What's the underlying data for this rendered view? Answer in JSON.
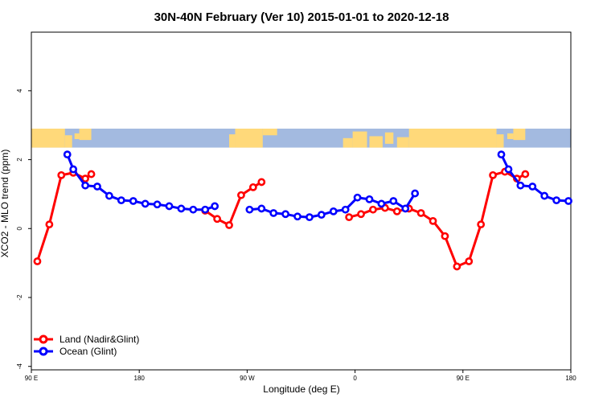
{
  "chart_data": {
    "type": "line",
    "title": "30N-40N February (Ver 10)   2015-01-01 to 2020-12-18",
    "xlabel": "Longitude (deg E)",
    "ylabel": "XCO2 - MLO trend (ppm)",
    "xlim": [
      90,
      540
    ],
    "ylim": [
      -4.1,
      5.7
    ],
    "x_ticks": [
      {
        "value": 90,
        "label": "90 E"
      },
      {
        "value": 180,
        "label": "180"
      },
      {
        "value": 270,
        "label": "90 W"
      },
      {
        "value": 360,
        "label": "0"
      },
      {
        "value": 450,
        "label": "90 E"
      },
      {
        "value": 540,
        "label": "180"
      }
    ],
    "y_ticks": [
      {
        "value": -4,
        "label": "-4"
      },
      {
        "value": -2,
        "label": "-2"
      },
      {
        "value": 0,
        "label": "0"
      },
      {
        "value": 2,
        "label": "2"
      },
      {
        "value": 4,
        "label": "4"
      }
    ],
    "map_strip": {
      "lat_range": [
        30,
        40
      ],
      "y_range": [
        2.35,
        2.9
      ],
      "land_color": "#FFD97A",
      "ocean_color": "#A3BAE0"
    },
    "legend": {
      "position": "bottom-left"
    },
    "series": [
      {
        "name": "Land (Nadir&Glint)",
        "color": "#FF0000",
        "segments": [
          [
            [
              95,
              -0.95
            ],
            [
              105,
              0.12
            ],
            [
              115,
              1.55
            ],
            [
              125,
              1.62
            ],
            [
              135,
              1.45
            ],
            [
              140,
              1.58
            ]
          ],
          [
            [
              235,
              0.52
            ],
            [
              245,
              0.28
            ],
            [
              255,
              0.1
            ],
            [
              265,
              0.97
            ],
            [
              275,
              1.2
            ],
            [
              282,
              1.35
            ]
          ],
          [
            [
              355,
              0.33
            ],
            [
              365,
              0.42
            ],
            [
              375,
              0.55
            ],
            [
              385,
              0.6
            ],
            [
              395,
              0.5
            ],
            [
              405,
              0.58
            ],
            [
              415,
              0.45
            ],
            [
              425,
              0.22
            ],
            [
              435,
              -0.22
            ],
            [
              445,
              -1.1
            ],
            [
              455,
              -0.95
            ],
            [
              465,
              0.12
            ],
            [
              475,
              1.55
            ],
            [
              485,
              1.65
            ],
            [
              495,
              1.45
            ],
            [
              502,
              1.58
            ]
          ]
        ]
      },
      {
        "name": "Ocean (Glint)",
        "color": "#0000FF",
        "segments": [
          [
            [
              120,
              2.15
            ],
            [
              125,
              1.72
            ],
            [
              135,
              1.25
            ],
            [
              145,
              1.22
            ],
            [
              155,
              0.95
            ],
            [
              165,
              0.82
            ],
            [
              175,
              0.8
            ],
            [
              185,
              0.72
            ],
            [
              195,
              0.7
            ],
            [
              205,
              0.65
            ],
            [
              215,
              0.58
            ],
            [
              225,
              0.55
            ],
            [
              235,
              0.55
            ],
            [
              243,
              0.65
            ]
          ],
          [
            [
              272,
              0.55
            ],
            [
              282,
              0.58
            ],
            [
              292,
              0.45
            ],
            [
              302,
              0.42
            ],
            [
              312,
              0.35
            ],
            [
              322,
              0.33
            ],
            [
              332,
              0.4
            ],
            [
              342,
              0.5
            ],
            [
              352,
              0.55
            ],
            [
              362,
              0.9
            ],
            [
              372,
              0.85
            ],
            [
              382,
              0.72
            ],
            [
              392,
              0.8
            ],
            [
              402,
              0.58
            ],
            [
              410,
              1.02
            ]
          ]
        ],
        "note_source": "repeat",
        "segments_extra": [
          [
            [
              482,
              2.15
            ],
            [
              488,
              1.72
            ],
            [
              498,
              1.25
            ],
            [
              508,
              1.22
            ],
            [
              518,
              0.95
            ],
            [
              528,
              0.82
            ],
            [
              538,
              0.8
            ]
          ]
        ]
      }
    ]
  }
}
